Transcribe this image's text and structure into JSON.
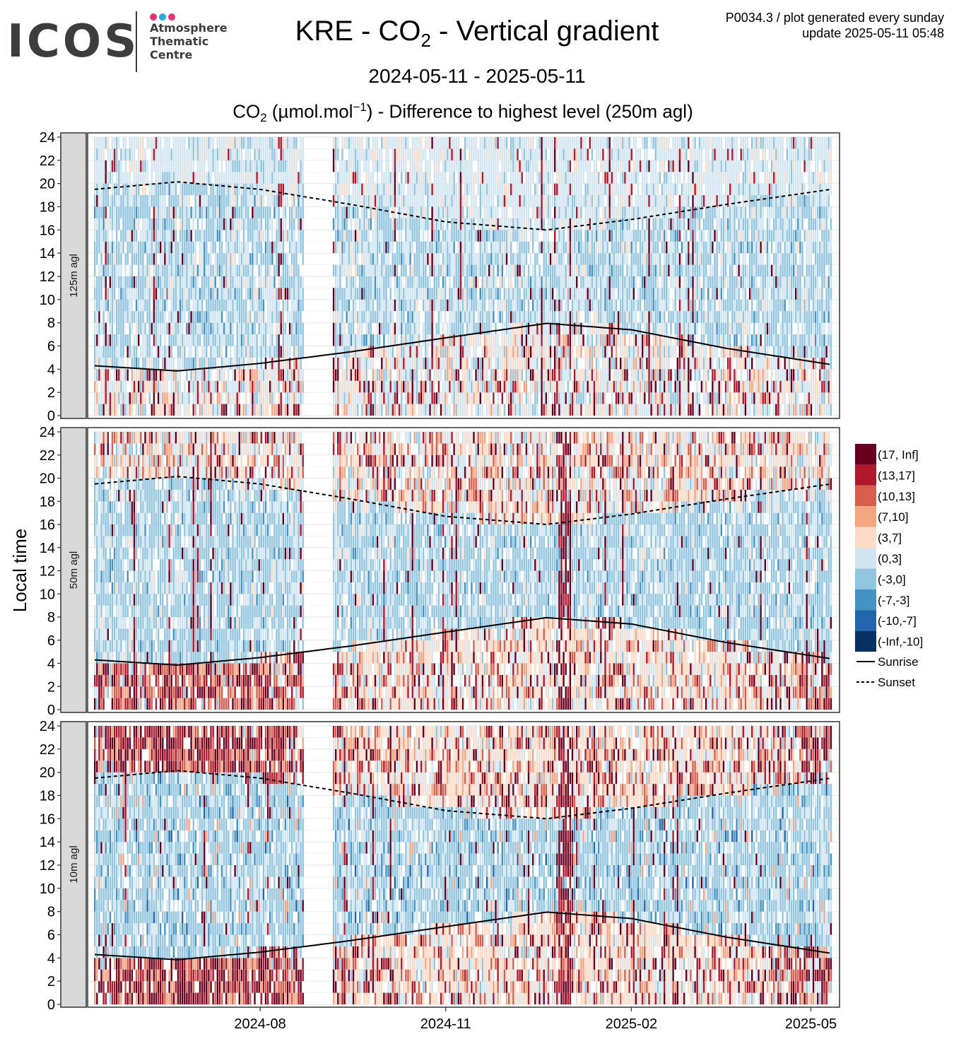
{
  "header": {
    "logo_text": "ICOS",
    "logo_sub": [
      "Atmosphere",
      "Thematic",
      "Centre"
    ],
    "logo_dot_colors": [
      "#e8336d",
      "#2aa9e0",
      "#e8336d"
    ],
    "meta_line1": "P0034.3 / plot generated every sunday",
    "meta_line2": "update  2025-05-11 05:48",
    "title_prefix": "KRE - CO",
    "title_sub": "2",
    "title_suffix": " - Vertical gradient",
    "date_range": "2024-05-11 - 2025-05-11",
    "subtitle_prefix": "CO",
    "subtitle_sub": "2",
    "subtitle_unit_open": " (µmol.mol",
    "subtitle_sup": "−1",
    "subtitle_suffix": ") - Difference to highest level (250m agl)"
  },
  "chart_data": {
    "type": "heatmap",
    "title": "KRE - CO2 - Vertical gradient",
    "subtitle": "CO2 (µmol.mol-1) - Difference to highest level (250m agl)",
    "date_range": [
      "2024-05-11",
      "2025-05-11"
    ],
    "ylabel": "Local time",
    "y_range": [
      0,
      24
    ],
    "y_ticks": [
      "0",
      "2",
      "4",
      "6",
      "8",
      "10",
      "12",
      "14",
      "16",
      "18",
      "20",
      "22",
      "24"
    ],
    "x_ticks": [
      {
        "date": "2024-08-01",
        "label": "2024-08"
      },
      {
        "date": "2024-11-01",
        "label": "2024-11"
      },
      {
        "date": "2025-02-01",
        "label": "2025-02"
      },
      {
        "date": "2025-05-01",
        "label": "2025-05"
      }
    ],
    "data_gap": [
      "2024-08-22",
      "2024-09-05"
    ],
    "grid": true,
    "legend_position": "right",
    "legend_bins": [
      {
        "label": "(17, Inf]",
        "color": "#67001f"
      },
      {
        "label": "(13,17]",
        "color": "#b2182b"
      },
      {
        "label": "(10,13]",
        "color": "#d6604d"
      },
      {
        "label": "(7,10]",
        "color": "#f4a582"
      },
      {
        "label": "(3,7]",
        "color": "#fddbc7"
      },
      {
        "label": "(0,3]",
        "color": "#d1e5f0"
      },
      {
        "label": "(-3,0]",
        "color": "#92c5de"
      },
      {
        "label": "(-7,-3]",
        "color": "#4393c3"
      },
      {
        "label": "(-10,-7]",
        "color": "#2166ac"
      },
      {
        "label": "(-Inf,-10]",
        "color": "#053061"
      }
    ],
    "line_legend": [
      {
        "label": "Sunrise",
        "style": "solid"
      },
      {
        "label": "Sunset",
        "style": "dashed"
      }
    ],
    "facets": [
      {
        "label": "125m agl",
        "typical_bins_by_hour_band": {
          "0-8": "(0,3] / (3,7] mixed",
          "8-19": "(-3,0] / (0,3]",
          "19-24": "(0,3]"
        }
      },
      {
        "label": "50m agl",
        "typical_bins_by_hour_band": {
          "0-8": "(7,10] to (17, Inf] in summer",
          "8-19": "(-3,0]",
          "19-24": "(3,7] / (7,10]"
        }
      },
      {
        "label": "10m agl",
        "typical_bins_by_hour_band": {
          "0-7": "(13,17] / (17, Inf] in summer",
          "7-19": "(-3,0] / (-7,-3]",
          "19-24": "(13,17] / (17, Inf] in summer"
        }
      }
    ],
    "sunrise": [
      {
        "date": "2024-05-11",
        "hour": 4.3
      },
      {
        "date": "2024-06-21",
        "hour": 3.85
      },
      {
        "date": "2024-08-01",
        "hour": 4.5
      },
      {
        "date": "2024-09-15",
        "hour": 5.5
      },
      {
        "date": "2024-11-01",
        "hour": 6.7
      },
      {
        "date": "2024-12-21",
        "hour": 7.95
      },
      {
        "date": "2025-02-01",
        "hour": 7.4
      },
      {
        "date": "2025-03-20",
        "hour": 5.8
      },
      {
        "date": "2025-05-11",
        "hour": 4.4
      }
    ],
    "sunset": [
      {
        "date": "2024-05-11",
        "hour": 19.5
      },
      {
        "date": "2024-06-21",
        "hour": 20.15
      },
      {
        "date": "2024-08-01",
        "hour": 19.5
      },
      {
        "date": "2024-09-15",
        "hour": 18.2
      },
      {
        "date": "2024-11-01",
        "hour": 16.7
      },
      {
        "date": "2024-12-21",
        "hour": 16.0
      },
      {
        "date": "2025-02-01",
        "hour": 16.9
      },
      {
        "date": "2025-03-20",
        "hour": 18.2
      },
      {
        "date": "2025-05-11",
        "hour": 19.5
      }
    ]
  }
}
